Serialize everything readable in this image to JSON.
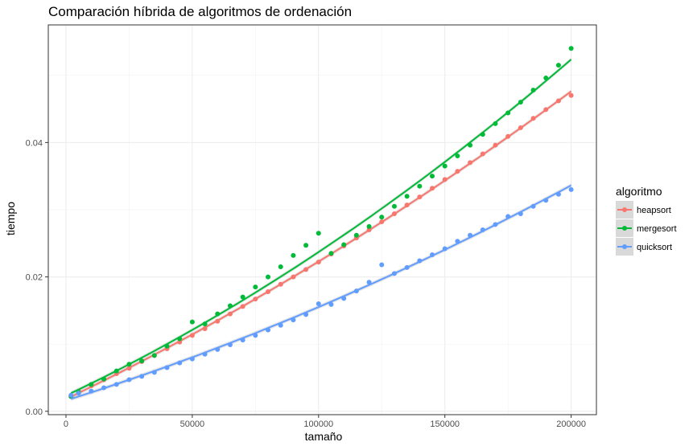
{
  "chart_data": {
    "type": "scatter",
    "title": "Comparación híbrida de algoritmos de ordenación",
    "xlabel": "tamaño",
    "ylabel": "tiempo",
    "xlim": [
      -7000,
      210000
    ],
    "ylim": [
      -0.0005,
      0.0575
    ],
    "x_ticks": [
      0,
      50000,
      100000,
      150000,
      200000
    ],
    "x_tick_labels": [
      "0",
      "50000",
      "100000",
      "150000",
      "200000"
    ],
    "y_ticks": [
      0.0,
      0.02,
      0.04
    ],
    "y_tick_labels": [
      "0.00",
      "0.02",
      "0.04"
    ],
    "grid": true,
    "theme": "bw",
    "legend": {
      "title": "algoritmo",
      "position": "right",
      "entries": [
        "heapsort",
        "mergesort",
        "quicksort"
      ]
    },
    "smooth_lines": true,
    "series": [
      {
        "name": "heapsort",
        "color": "#F8766D",
        "x": [
          2000,
          5000,
          10000,
          15000,
          20000,
          25000,
          30000,
          35000,
          40000,
          45000,
          50000,
          55000,
          60000,
          65000,
          70000,
          75000,
          80000,
          85000,
          90000,
          95000,
          100000,
          105000,
          110000,
          115000,
          120000,
          125000,
          130000,
          135000,
          140000,
          145000,
          150000,
          155000,
          160000,
          165000,
          170000,
          175000,
          180000,
          185000,
          190000,
          195000,
          200000
        ],
        "y": [
          0.0022,
          0.003,
          0.0038,
          0.0047,
          0.0056,
          0.0064,
          0.0074,
          0.0083,
          0.0093,
          0.0103,
          0.0113,
          0.0123,
          0.0134,
          0.0145,
          0.0156,
          0.0167,
          0.0178,
          0.0189,
          0.02,
          0.0211,
          0.0222,
          0.0234,
          0.0246,
          0.0258,
          0.027,
          0.0282,
          0.0294,
          0.0307,
          0.0319,
          0.0332,
          0.0345,
          0.0357,
          0.037,
          0.0383,
          0.0396,
          0.0409,
          0.0422,
          0.0436,
          0.0449,
          0.0462,
          0.047
        ]
      },
      {
        "name": "mergesort",
        "color": "#00BA38",
        "x": [
          2000,
          5000,
          10000,
          15000,
          20000,
          25000,
          30000,
          35000,
          40000,
          45000,
          50000,
          55000,
          60000,
          65000,
          70000,
          75000,
          80000,
          85000,
          90000,
          95000,
          100000,
          105000,
          110000,
          115000,
          120000,
          125000,
          130000,
          135000,
          140000,
          145000,
          150000,
          155000,
          160000,
          165000,
          170000,
          175000,
          180000,
          185000,
          190000,
          195000,
          200000
        ],
        "y": [
          0.0022,
          0.0028,
          0.004,
          0.0048,
          0.006,
          0.007,
          0.0075,
          0.0083,
          0.0097,
          0.0108,
          0.0133,
          0.013,
          0.0145,
          0.0157,
          0.017,
          0.0185,
          0.02,
          0.0215,
          0.0232,
          0.0247,
          0.0265,
          0.0235,
          0.0248,
          0.0262,
          0.0275,
          0.0289,
          0.0305,
          0.032,
          0.0335,
          0.035,
          0.0365,
          0.038,
          0.0396,
          0.0412,
          0.0428,
          0.0444,
          0.046,
          0.0478,
          0.0496,
          0.0515,
          0.054
        ]
      },
      {
        "name": "quicksort",
        "color": "#619CFF",
        "x": [
          2000,
          5000,
          10000,
          15000,
          20000,
          25000,
          30000,
          35000,
          40000,
          45000,
          50000,
          55000,
          60000,
          65000,
          70000,
          75000,
          80000,
          85000,
          90000,
          95000,
          100000,
          105000,
          110000,
          115000,
          120000,
          125000,
          130000,
          135000,
          140000,
          145000,
          150000,
          155000,
          160000,
          165000,
          170000,
          175000,
          180000,
          185000,
          190000,
          195000,
          200000
        ],
        "y": [
          0.0024,
          0.0027,
          0.003,
          0.0035,
          0.004,
          0.0047,
          0.0052,
          0.0058,
          0.0065,
          0.0072,
          0.0078,
          0.0085,
          0.0092,
          0.0099,
          0.0106,
          0.0113,
          0.0121,
          0.0128,
          0.0136,
          0.0144,
          0.016,
          0.0159,
          0.0168,
          0.0179,
          0.0192,
          0.0218,
          0.0205,
          0.0214,
          0.0224,
          0.0233,
          0.0242,
          0.0253,
          0.0262,
          0.027,
          0.0278,
          0.029,
          0.0294,
          0.0305,
          0.0314,
          0.0323,
          0.033
        ]
      }
    ]
  }
}
